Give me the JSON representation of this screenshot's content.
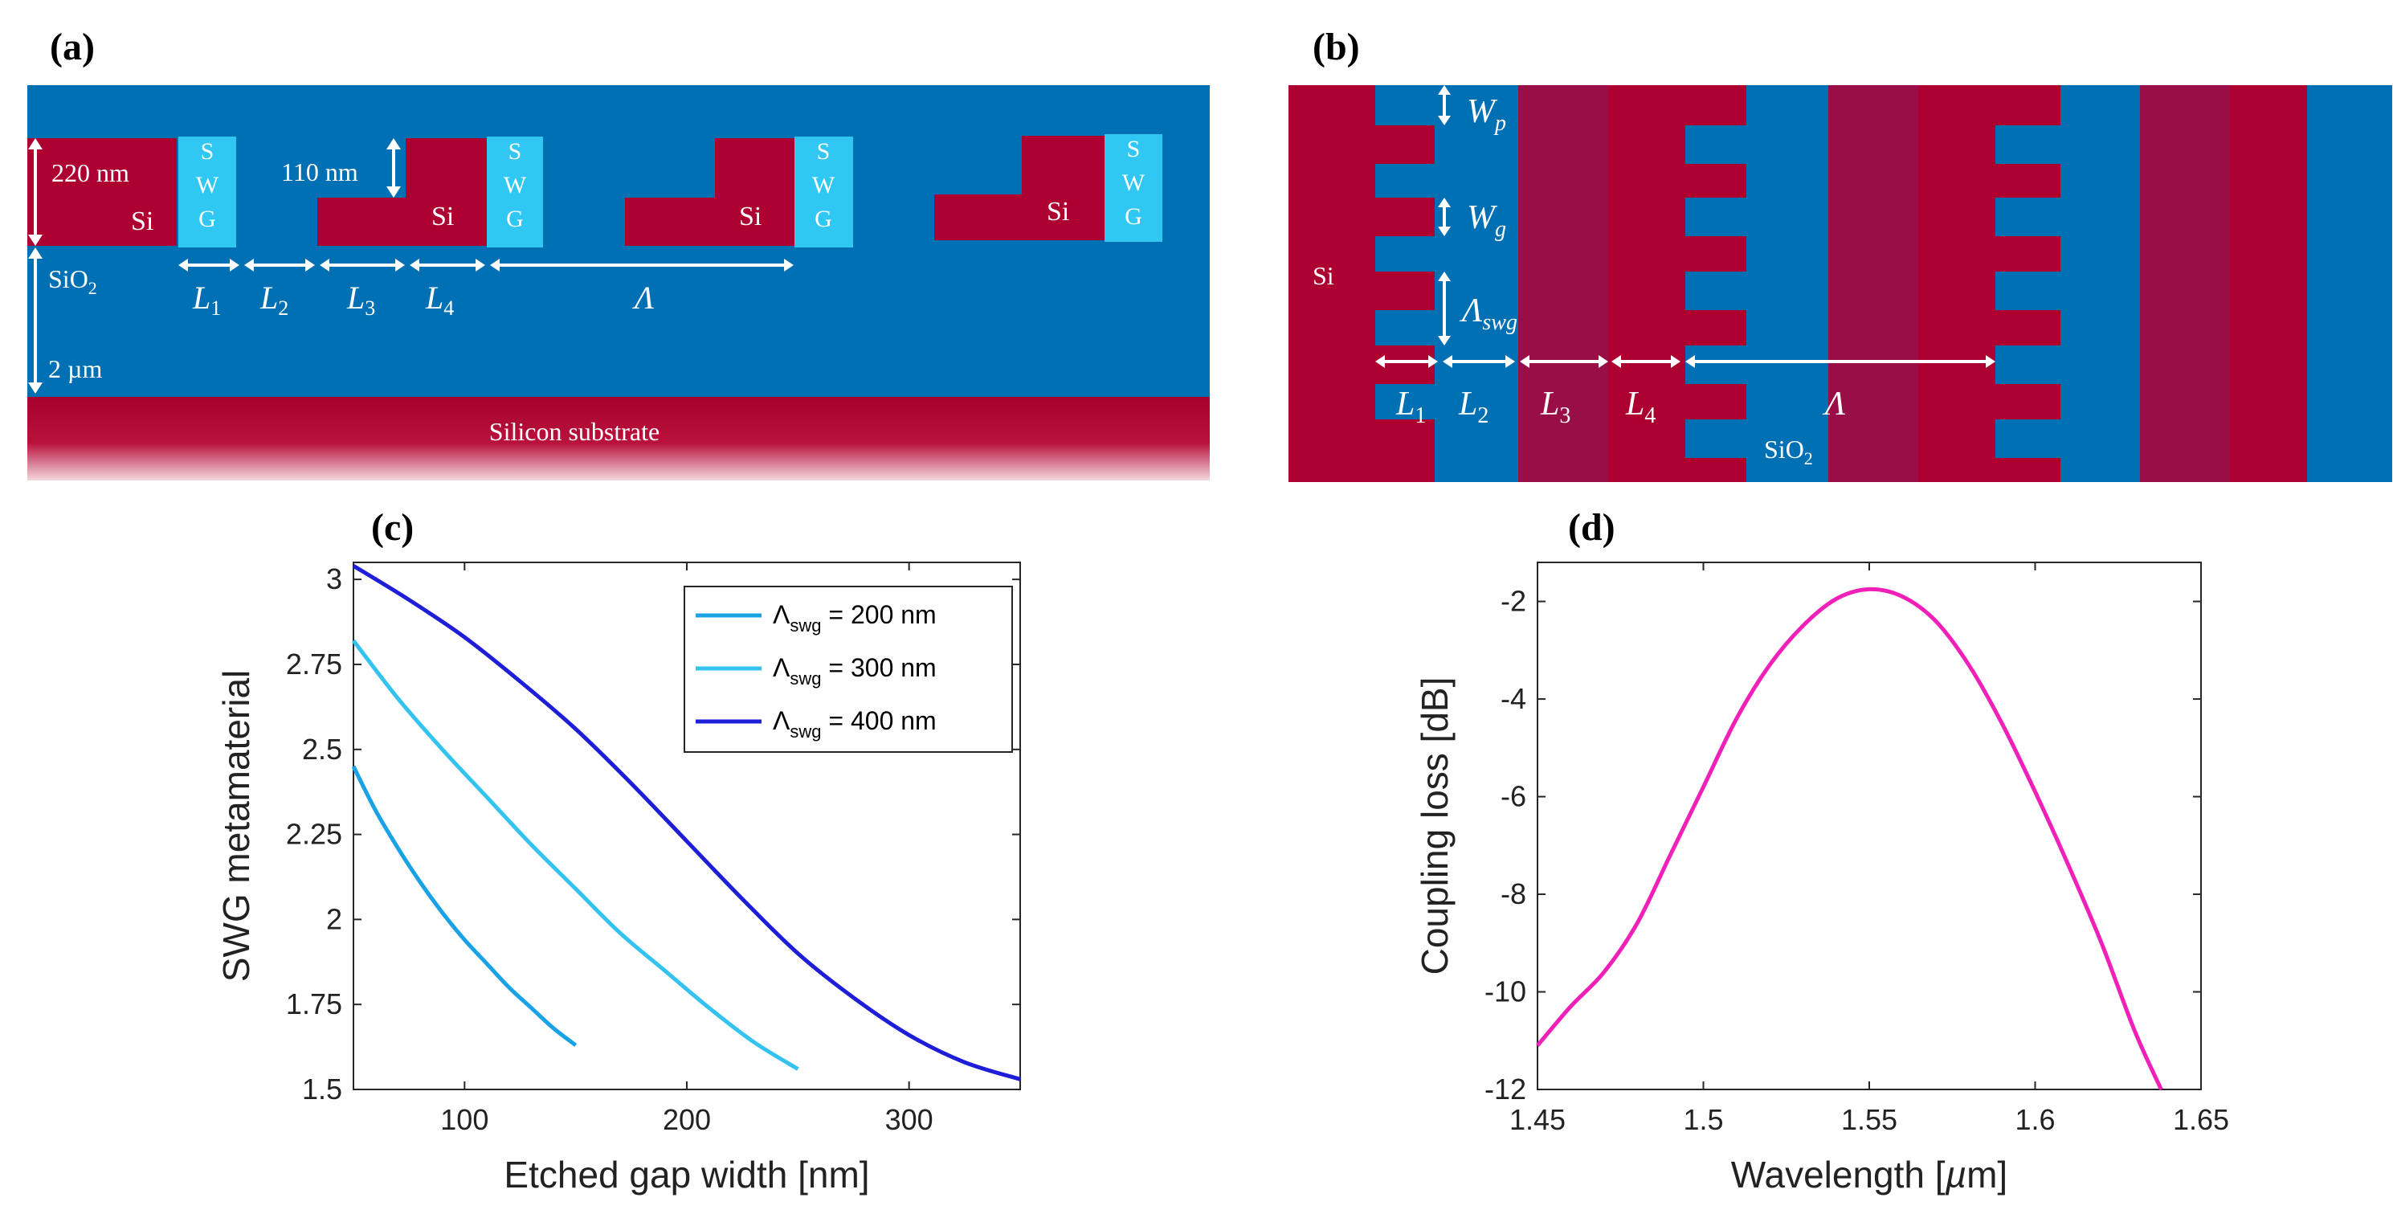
{
  "panel_labels": {
    "a": "(a)",
    "b": "(b)",
    "c": "(c)",
    "d": "(d)"
  },
  "diagram_a": {
    "dim_220": "220 nm",
    "dim_110": "110 nm",
    "si": "Si",
    "swg": [
      "S",
      "W",
      "G"
    ],
    "sio2": "SiO",
    "sio2_sub": "2",
    "dim_2um": "2 µm",
    "substrate": "Silicon substrate",
    "L": "L",
    "subs": [
      "1",
      "2",
      "3",
      "4"
    ],
    "lambda": "Λ"
  },
  "diagram_b": {
    "W": "W",
    "wp_sub": "p",
    "wg_sub": "g",
    "si": "Si",
    "lambda": "Λ",
    "lambda_swg_sub": "swg",
    "L": "L",
    "subs": [
      "1",
      "2",
      "3",
      "4"
    ],
    "sio2": "SiO",
    "sio2_sub": "2"
  },
  "colors": {
    "oxide": "#0070b4",
    "silicon": "#ad0030",
    "silicon_dark": "#9a0e47",
    "swg": "#30c8f2",
    "series_200": "#1aa2e6",
    "series_300": "#34c3ee",
    "series_400": "#1e1ed8",
    "series_d": "#f020b8"
  },
  "chart_data": [
    {
      "type": "line",
      "title": "",
      "xlabel": "Etched gap width [nm]",
      "ylabel": "SWG metamaterial",
      "xlim": [
        50,
        350
      ],
      "ylim": [
        1.5,
        3.05
      ],
      "xticks": [
        100,
        200,
        300
      ],
      "xtick_labels": [
        "100",
        "200",
        "300"
      ],
      "yticks": [
        1.5,
        1.75,
        2,
        2.25,
        2.5,
        2.75,
        3
      ],
      "ytick_labels": [
        "1.5",
        "1.75",
        "2",
        "2.25",
        "2.5",
        "2.75",
        "3"
      ],
      "legend_position": "top-right",
      "series": [
        {
          "name": "Λ",
          "sub": "swg",
          "suffix": " = 200 nm",
          "x": [
            50,
            60,
            70,
            80,
            90,
            100,
            110,
            120,
            130,
            140,
            150
          ],
          "y": [
            2.45,
            2.32,
            2.21,
            2.11,
            2.02,
            1.94,
            1.87,
            1.8,
            1.74,
            1.68,
            1.63
          ]
        },
        {
          "name": "Λ",
          "sub": "swg",
          "suffix": " = 300 nm",
          "x": [
            50,
            70,
            90,
            110,
            130,
            150,
            170,
            190,
            210,
            230,
            250
          ],
          "y": [
            2.82,
            2.65,
            2.5,
            2.36,
            2.22,
            2.09,
            1.96,
            1.85,
            1.74,
            1.64,
            1.56
          ]
        },
        {
          "name": "Λ",
          "sub": "swg",
          "suffix": " = 400 nm",
          "x": [
            50,
            75,
            100,
            125,
            150,
            175,
            200,
            225,
            250,
            275,
            300,
            325,
            350
          ],
          "y": [
            3.04,
            2.94,
            2.83,
            2.7,
            2.56,
            2.4,
            2.23,
            2.06,
            1.9,
            1.77,
            1.66,
            1.58,
            1.53
          ]
        }
      ]
    },
    {
      "type": "line",
      "title": "",
      "xlabel": "Wavelength [",
      "xlabel_mu": "µ",
      "xlabel_end": "m]",
      "ylabel": "Coupling loss [dB]",
      "xlim": [
        1.45,
        1.65
      ],
      "ylim": [
        -12,
        -1.2
      ],
      "xticks": [
        1.45,
        1.5,
        1.55,
        1.6,
        1.65
      ],
      "xtick_labels": [
        "1.45",
        "1.5",
        "1.55",
        "1.6",
        "1.65"
      ],
      "yticks": [
        -12,
        -10,
        -8,
        -6,
        -4,
        -2
      ],
      "ytick_labels": [
        "-12",
        "-10",
        "-8",
        "-6",
        "-4",
        "-2"
      ],
      "series": [
        {
          "name": "coupling loss",
          "x": [
            1.45,
            1.46,
            1.47,
            1.48,
            1.49,
            1.5,
            1.51,
            1.52,
            1.53,
            1.54,
            1.55,
            1.56,
            1.57,
            1.58,
            1.59,
            1.6,
            1.61,
            1.62,
            1.63,
            1.638
          ],
          "y": [
            -11.1,
            -10.3,
            -9.6,
            -8.6,
            -7.2,
            -5.8,
            -4.4,
            -3.3,
            -2.5,
            -1.95,
            -1.75,
            -1.9,
            -2.4,
            -3.3,
            -4.5,
            -5.9,
            -7.4,
            -9.0,
            -10.8,
            -12.0
          ]
        }
      ]
    }
  ]
}
